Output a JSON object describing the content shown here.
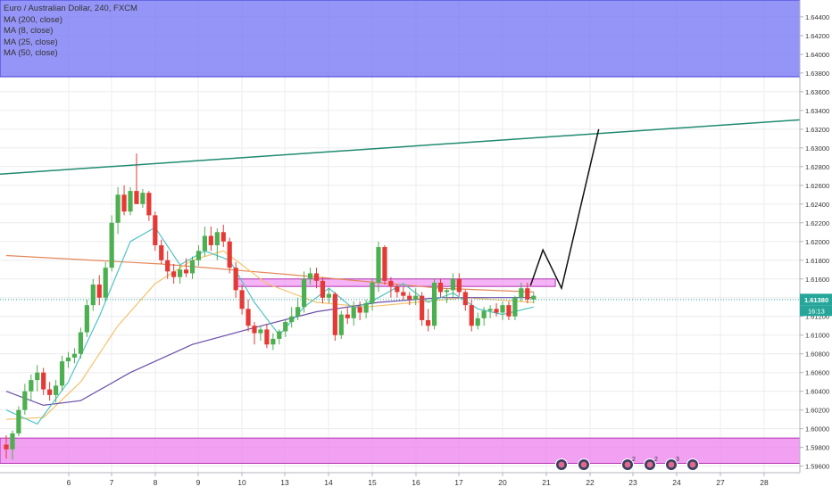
{
  "legend": {
    "symbol": "Euro / Australian Dollar, 240, FXCM",
    "ma200": "MA (200, close)",
    "ma8": "MA (8, close)",
    "ma25": "MA (25, close)",
    "ma50": "MA (50, close)"
  },
  "price_tag": {
    "price": "1.61380",
    "countdown": "16:13"
  },
  "events": [
    {
      "date": "21.5",
      "icon": "event-flag-icon",
      "count": ""
    },
    {
      "date": "22",
      "icon": "event-flag-icon",
      "count": ""
    },
    {
      "date": "23",
      "icon": "event-flag-icon",
      "count": "2"
    },
    {
      "date": "23.5",
      "icon": "event-flag-icon",
      "count": "2"
    },
    {
      "date": "24",
      "icon": "event-flag-icon",
      "count": "3"
    },
    {
      "date": "24.5",
      "icon": "event-flag-icon",
      "count": ""
    }
  ],
  "colors": {
    "up": "#4caf50",
    "down": "#e53935",
    "ma200": "#e4875a",
    "ma8": "#4fc3c6",
    "ma25": "#f5c26b",
    "ma50": "#6a4fa8",
    "trendline": "#1f8a70",
    "zone_top": "#7b7bf5",
    "zone_bottom": "#ee82ee",
    "zone_mid": "#ee82ee",
    "price_tag": "#26a69a"
  },
  "chart_data": {
    "type": "candlestick",
    "symbol": "Euro / Australian Dollar",
    "timeframe": "240",
    "source": "FXCM",
    "x_ticks": [
      "6",
      "7",
      "8",
      "9",
      "10",
      "13",
      "14",
      "15",
      "16",
      "17",
      "20",
      "21",
      "22",
      "23",
      "24",
      "27",
      "28"
    ],
    "y_ticks": [
      "1.59600",
      "1.59800",
      "1.60000",
      "1.60200",
      "1.60400",
      "1.60600",
      "1.60800",
      "1.61000",
      "1.61200",
      "1.61400",
      "1.61600",
      "1.61800",
      "1.62000",
      "1.62200",
      "1.62400",
      "1.62600",
      "1.62800",
      "1.63000",
      "1.63200",
      "1.63400",
      "1.63600",
      "1.63800",
      "1.64000",
      "1.64200",
      "1.64400"
    ],
    "ylim": [
      1.5953,
      1.6458
    ],
    "current_price": 1.6138,
    "candles": [
      [
        1.5983,
        1.5993,
        1.5968,
        1.5978
      ],
      [
        1.5978,
        1.5998,
        1.5967,
        1.5995
      ],
      [
        1.5995,
        1.6024,
        1.5992,
        1.602
      ],
      [
        1.602,
        1.6048,
        1.6015,
        1.604
      ],
      [
        1.604,
        1.6058,
        1.603,
        1.6052
      ],
      [
        1.6052,
        1.6068,
        1.604,
        1.606
      ],
      [
        1.606,
        1.6065,
        1.6036,
        1.6042
      ],
      [
        1.6042,
        1.605,
        1.603,
        1.6036
      ],
      [
        1.6036,
        1.6052,
        1.6028,
        1.6046
      ],
      [
        1.6046,
        1.6078,
        1.604,
        1.6072
      ],
      [
        1.6072,
        1.6082,
        1.6065,
        1.6076
      ],
      [
        1.6076,
        1.6086,
        1.607,
        1.608
      ],
      [
        1.608,
        1.6108,
        1.6075,
        1.6103
      ],
      [
        1.6103,
        1.6138,
        1.6098,
        1.6132
      ],
      [
        1.6132,
        1.616,
        1.6126,
        1.6154
      ],
      [
        1.6154,
        1.6164,
        1.6132,
        1.614
      ],
      [
        1.614,
        1.6178,
        1.6136,
        1.6172
      ],
      [
        1.6172,
        1.6228,
        1.6168,
        1.622
      ],
      [
        1.622,
        1.6258,
        1.6208,
        1.625
      ],
      [
        1.625,
        1.626,
        1.6228,
        1.6232
      ],
      [
        1.6232,
        1.6258,
        1.6228,
        1.6254
      ],
      [
        1.6254,
        1.6294,
        1.624,
        1.624
      ],
      [
        1.624,
        1.6256,
        1.6236,
        1.6252
      ],
      [
        1.6252,
        1.6254,
        1.6222,
        1.6228
      ],
      [
        1.6228,
        1.6232,
        1.619,
        1.6196
      ],
      [
        1.6196,
        1.6202,
        1.6176,
        1.618
      ],
      [
        1.618,
        1.619,
        1.616,
        1.6168
      ],
      [
        1.6168,
        1.6176,
        1.6155,
        1.6162
      ],
      [
        1.6162,
        1.6174,
        1.6155,
        1.617
      ],
      [
        1.617,
        1.6182,
        1.6162,
        1.6166
      ],
      [
        1.6166,
        1.6184,
        1.616,
        1.618
      ],
      [
        1.618,
        1.6196,
        1.6174,
        1.619
      ],
      [
        1.619,
        1.6216,
        1.6184,
        1.6206
      ],
      [
        1.6206,
        1.6216,
        1.619,
        1.6196
      ],
      [
        1.6196,
        1.6214,
        1.618,
        1.621
      ],
      [
        1.621,
        1.6218,
        1.6194,
        1.62
      ],
      [
        1.62,
        1.6204,
        1.6166,
        1.6172
      ],
      [
        1.6172,
        1.6178,
        1.614,
        1.6148
      ],
      [
        1.6148,
        1.6154,
        1.6122,
        1.6128
      ],
      [
        1.6128,
        1.6138,
        1.6104,
        1.611
      ],
      [
        1.611,
        1.6114,
        1.609,
        1.6102
      ],
      [
        1.6102,
        1.611,
        1.6094,
        1.6106
      ],
      [
        1.6106,
        1.6112,
        1.6086,
        1.609
      ],
      [
        1.609,
        1.6102,
        1.6084,
        1.6096
      ],
      [
        1.6096,
        1.6106,
        1.609,
        1.6104
      ],
      [
        1.6104,
        1.6116,
        1.6098,
        1.6114
      ],
      [
        1.6114,
        1.613,
        1.6108,
        1.612
      ],
      [
        1.612,
        1.614,
        1.6116,
        1.613
      ],
      [
        1.613,
        1.6168,
        1.6124,
        1.616
      ],
      [
        1.616,
        1.6172,
        1.6154,
        1.6166
      ],
      [
        1.6166,
        1.6172,
        1.615,
        1.6158
      ],
      [
        1.6158,
        1.6162,
        1.6134,
        1.614
      ],
      [
        1.614,
        1.615,
        1.6134,
        1.6144
      ],
      [
        1.6144,
        1.6146,
        1.6094,
        1.61
      ],
      [
        1.61,
        1.6126,
        1.6096,
        1.6122
      ],
      [
        1.6122,
        1.613,
        1.6112,
        1.6118
      ],
      [
        1.6118,
        1.6136,
        1.611,
        1.613
      ],
      [
        1.613,
        1.6136,
        1.6116,
        1.6124
      ],
      [
        1.6124,
        1.6138,
        1.6118,
        1.6134
      ],
      [
        1.6134,
        1.616,
        1.6126,
        1.6156
      ],
      [
        1.6156,
        1.62,
        1.6146,
        1.6194
      ],
      [
        1.6194,
        1.6196,
        1.6154,
        1.6158
      ],
      [
        1.6158,
        1.6162,
        1.614,
        1.6152
      ],
      [
        1.6152,
        1.6154,
        1.614,
        1.6146
      ],
      [
        1.6146,
        1.6152,
        1.6138,
        1.6142
      ],
      [
        1.6142,
        1.6146,
        1.6132,
        1.6138
      ],
      [
        1.6138,
        1.615,
        1.6132,
        1.6142
      ],
      [
        1.6142,
        1.6146,
        1.611,
        1.6116
      ],
      [
        1.6116,
        1.6128,
        1.6104,
        1.611
      ],
      [
        1.611,
        1.616,
        1.6106,
        1.6156
      ],
      [
        1.6156,
        1.616,
        1.614,
        1.6146
      ],
      [
        1.6146,
        1.615,
        1.6134,
        1.6148
      ],
      [
        1.6148,
        1.6166,
        1.614,
        1.616
      ],
      [
        1.616,
        1.6166,
        1.6142,
        1.6146
      ],
      [
        1.6146,
        1.6148,
        1.6126,
        1.6132
      ],
      [
        1.6132,
        1.6138,
        1.6104,
        1.611
      ],
      [
        1.611,
        1.6124,
        1.6106,
        1.6118
      ],
      [
        1.6118,
        1.613,
        1.611,
        1.6126
      ],
      [
        1.6126,
        1.6132,
        1.6118,
        1.6128
      ],
      [
        1.6128,
        1.6134,
        1.612,
        1.6124
      ],
      [
        1.6124,
        1.6136,
        1.6116,
        1.6132
      ],
      [
        1.6132,
        1.6136,
        1.6116,
        1.612
      ],
      [
        1.612,
        1.6142,
        1.6116,
        1.614
      ],
      [
        1.614,
        1.6156,
        1.6136,
        1.615
      ],
      [
        1.615,
        1.6156,
        1.6134,
        1.6138
      ],
      [
        1.6138,
        1.6146,
        1.6134,
        1.6142
      ]
    ],
    "moving_averages": {
      "ma200": [
        [
          0,
          1.6185
        ],
        [
          25,
          1.6176
        ],
        [
          45,
          1.6165
        ],
        [
          70,
          1.615
        ],
        [
          85,
          1.6146
        ]
      ],
      "ma8": [
        [
          0,
          1.602
        ],
        [
          5,
          1.6005
        ],
        [
          10,
          1.605
        ],
        [
          15,
          1.612
        ],
        [
          20,
          1.62
        ],
        [
          24,
          1.6215
        ],
        [
          28,
          1.6175
        ],
        [
          32,
          1.619
        ],
        [
          36,
          1.618
        ],
        [
          40,
          1.6135
        ],
        [
          44,
          1.61
        ],
        [
          48,
          1.613
        ],
        [
          52,
          1.615
        ],
        [
          56,
          1.6128
        ],
        [
          60,
          1.614
        ],
        [
          64,
          1.6155
        ],
        [
          68,
          1.6135
        ],
        [
          72,
          1.6145
        ],
        [
          76,
          1.6128
        ],
        [
          80,
          1.6122
        ],
        [
          85,
          1.613
        ]
      ],
      "ma25": [
        [
          0,
          1.601
        ],
        [
          6,
          1.6012
        ],
        [
          12,
          1.605
        ],
        [
          18,
          1.611
        ],
        [
          24,
          1.6155
        ],
        [
          30,
          1.618
        ],
        [
          35,
          1.619
        ],
        [
          42,
          1.6155
        ],
        [
          50,
          1.6135
        ],
        [
          58,
          1.613
        ],
        [
          66,
          1.6135
        ],
        [
          74,
          1.614
        ],
        [
          85,
          1.6135
        ]
      ],
      "ma50": [
        [
          0,
          1.604
        ],
        [
          6,
          1.6025
        ],
        [
          12,
          1.603
        ],
        [
          20,
          1.606
        ],
        [
          30,
          1.609
        ],
        [
          40,
          1.6108
        ],
        [
          50,
          1.6125
        ],
        [
          60,
          1.6135
        ],
        [
          70,
          1.614
        ],
        [
          85,
          1.614
        ]
      ]
    },
    "trendline": [
      [
        -1,
        1.6272
      ],
      [
        105,
        1.633
      ]
    ],
    "projection": [
      [
        84.5,
        1.6153
      ],
      [
        86.5,
        1.6191
      ],
      [
        89.5,
        1.615
      ],
      [
        95.5,
        1.632
      ]
    ],
    "zones": [
      {
        "name": "resistance",
        "y1": 1.6376,
        "y2": 1.6458,
        "x1": -1,
        "x2": 105
      },
      {
        "name": "support",
        "y1": 1.5963,
        "y2": 1.599,
        "x1": -1,
        "x2": 105
      },
      {
        "name": "range",
        "y1": 1.6152,
        "y2": 1.616,
        "x1": 37,
        "x2": 88.5
      }
    ],
    "grid": true
  }
}
